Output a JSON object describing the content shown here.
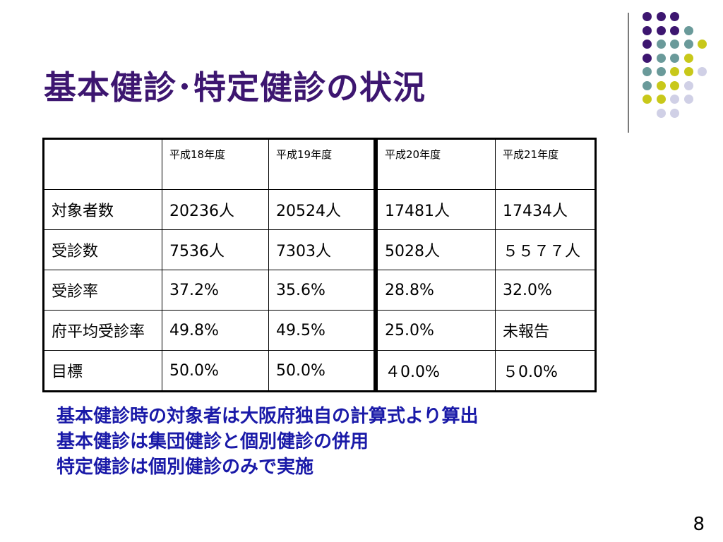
{
  "slide": {
    "title": "基本健診･特定健診の状況",
    "page_number": "8"
  },
  "table": {
    "headers": [
      "",
      "平成18年度",
      "平成19年度",
      "平成20年度",
      "平成21年度"
    ],
    "rows": [
      {
        "label": "対象者数",
        "values": [
          "20236人",
          "20524人",
          "17481人",
          "17434人"
        ]
      },
      {
        "label": "受診数",
        "values": [
          "7536人",
          "7303人",
          "5028人",
          "５５７７人"
        ]
      },
      {
        "label": "受診率",
        "values": [
          "37.2%",
          "35.6%",
          "28.8%",
          "32.0%"
        ]
      },
      {
        "label": "府平均受診率",
        "values": [
          "49.8%",
          "49.5%",
          "25.0%",
          "未報告"
        ]
      },
      {
        "label": "目標",
        "values": [
          "50.0%",
          "50.0%",
          "４0.0%",
          "５0.0%"
        ]
      }
    ]
  },
  "notes": [
    "基本健診時の対象者は大阪府独自の計算式より算出",
    "基本健診は集団健診と個別健診の併用",
    "特定健診は個別健診のみで実施"
  ],
  "colors": {
    "title": "#3d1670",
    "notes": "#1a1aa8",
    "dot_purple": "#3d1670",
    "dot_teal": "#6a9a9a",
    "dot_yellow": "#c8c81a",
    "dot_lavender": "#d0d0e6"
  }
}
